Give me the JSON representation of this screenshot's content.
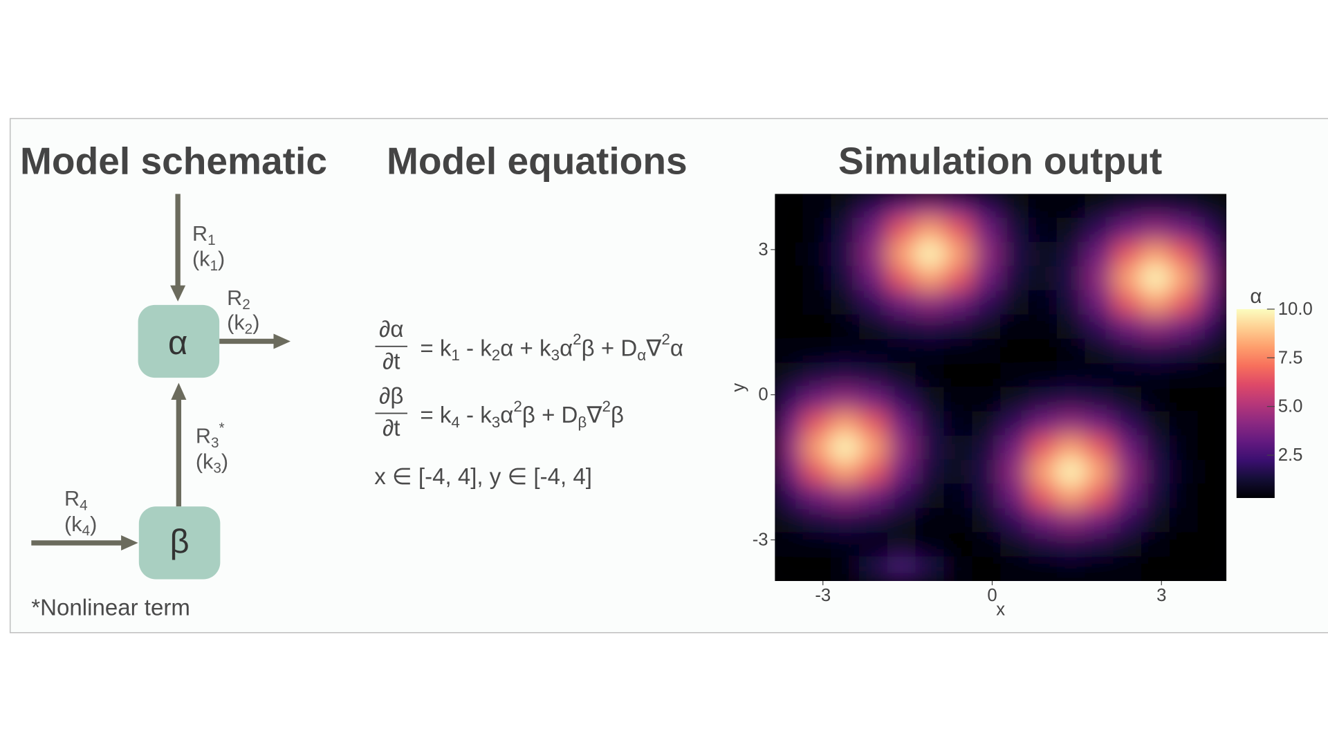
{
  "schematic": {
    "title": "Model schematic",
    "nodes": [
      {
        "label": "α"
      },
      {
        "label": "β"
      }
    ],
    "reactions": [
      {
        "label": [
          {
            "text": "R"
          },
          {
            "text": "1",
            "shift": "sub"
          }
        ],
        "rate": [
          {
            "text": "(k"
          },
          {
            "text": "1",
            "shift": "sub"
          },
          {
            "text": ")"
          }
        ]
      },
      {
        "label": [
          {
            "text": "R"
          },
          {
            "text": "2",
            "shift": "sub"
          }
        ],
        "rate": [
          {
            "text": "(k"
          },
          {
            "text": "2",
            "shift": "sub"
          },
          {
            "text": ")"
          }
        ]
      },
      {
        "label": [
          {
            "text": "R"
          },
          {
            "text": "3",
            "shift": "sub"
          },
          {
            "text": "*",
            "shift": "super"
          }
        ],
        "rate": [
          {
            "text": "(k"
          },
          {
            "text": "3",
            "shift": "sub"
          },
          {
            "text": ")"
          }
        ]
      },
      {
        "label": [
          {
            "text": "R"
          },
          {
            "text": "4",
            "shift": "sub"
          }
        ],
        "rate": [
          {
            "text": "(k"
          },
          {
            "text": "4",
            "shift": "sub"
          },
          {
            "text": ")"
          }
        ]
      }
    ],
    "footnote": "*Nonlinear term"
  },
  "equations": {
    "title": "Model equations",
    "rows": [
      {
        "numerator": "∂α",
        "denominator": "∂t",
        "rhs": [
          {
            "text": "= k"
          },
          {
            "text": "1",
            "shift": "sub"
          },
          {
            "text": " - k"
          },
          {
            "text": "2",
            "shift": "sub"
          },
          {
            "text": "α + k"
          },
          {
            "text": "3",
            "shift": "sub"
          },
          {
            "text": "α"
          },
          {
            "text": "2",
            "shift": "super"
          },
          {
            "text": "β + D"
          },
          {
            "text": "α",
            "shift": "sub"
          },
          {
            "text": "∇"
          },
          {
            "text": "2",
            "shift": "super"
          },
          {
            "text": "α"
          }
        ]
      },
      {
        "numerator": "∂β",
        "denominator": "∂t",
        "rhs": [
          {
            "text": "= k"
          },
          {
            "text": "4",
            "shift": "sub"
          },
          {
            "text": " - k"
          },
          {
            "text": "3",
            "shift": "sub"
          },
          {
            "text": "α"
          },
          {
            "text": "2",
            "shift": "super"
          },
          {
            "text": "β + D"
          },
          {
            "text": "β",
            "shift": "sub"
          },
          {
            "text": "∇"
          },
          {
            "text": "2",
            "shift": "super"
          },
          {
            "text": "β"
          }
        ]
      }
    ],
    "domain": "x ∈ [-4, 4], y ∈ [-4, 4]"
  },
  "chart_data": {
    "type": "heatmap",
    "title": "Simulation output",
    "x_label": "x",
    "y_label": "y",
    "x": [
      -3.6,
      -3.1,
      -2.6,
      -2.1,
      -1.6,
      -1.1,
      -0.6,
      -0.1,
      0.4,
      0.9,
      1.4,
      1.9,
      2.4,
      2.9,
      3.4,
      3.9
    ],
    "y": [
      3.9,
      3.4,
      2.9,
      2.4,
      1.9,
      1.4,
      0.9,
      0.4,
      -0.1,
      -0.6,
      -1.1,
      -1.6,
      -2.1,
      -2.6,
      -3.1,
      -3.6
    ],
    "z": [
      [
        0.3,
        0.4,
        0.8,
        1.9,
        3.5,
        4.3,
        3.5,
        1.9,
        0.8,
        0.4,
        0.5,
        0.8,
        1.4,
        1.6,
        1.4,
        0.8
      ],
      [
        0.3,
        0.5,
        1.4,
        3.5,
        6.5,
        8.1,
        6.5,
        3.5,
        1.4,
        0.6,
        0.8,
        1.9,
        3.5,
        4.3,
        3.5,
        1.9
      ],
      [
        0.3,
        0.6,
        1.6,
        4.3,
        8.1,
        10.0,
        8.1,
        4.3,
        1.6,
        0.8,
        1.4,
        3.5,
        6.5,
        8.1,
        6.5,
        3.5
      ],
      [
        0.3,
        0.5,
        1.4,
        3.5,
        6.5,
        8.1,
        6.5,
        3.5,
        1.4,
        0.8,
        1.6,
        4.3,
        8.1,
        10.0,
        8.1,
        4.3
      ],
      [
        0.3,
        0.4,
        0.8,
        1.9,
        3.5,
        4.3,
        3.5,
        1.9,
        0.8,
        0.6,
        1.4,
        3.5,
        6.5,
        8.1,
        6.5,
        3.5
      ],
      [
        0.3,
        0.3,
        0.5,
        0.8,
        1.4,
        1.6,
        1.4,
        0.8,
        0.5,
        0.4,
        0.8,
        1.9,
        3.5,
        4.3,
        3.5,
        1.9
      ],
      [
        0.4,
        0.5,
        0.6,
        0.6,
        0.6,
        0.6,
        0.5,
        0.4,
        0.3,
        0.3,
        0.5,
        0.8,
        1.4,
        1.6,
        1.4,
        0.8
      ],
      [
        0.8,
        1.4,
        1.6,
        1.4,
        0.8,
        0.5,
        0.3,
        0.3,
        0.4,
        0.5,
        0.6,
        0.6,
        0.6,
        0.6,
        0.5,
        0.4
      ],
      [
        1.9,
        3.5,
        4.3,
        3.5,
        1.9,
        0.8,
        0.4,
        0.5,
        0.8,
        1.4,
        1.6,
        1.4,
        0.8,
        0.5,
        0.3,
        0.3
      ],
      [
        3.5,
        6.5,
        8.1,
        6.5,
        3.5,
        1.4,
        0.6,
        0.8,
        1.9,
        3.5,
        4.3,
        3.5,
        1.9,
        0.8,
        0.4,
        0.3
      ],
      [
        4.3,
        8.1,
        10.0,
        8.1,
        4.3,
        1.6,
        0.8,
        1.4,
        3.5,
        6.5,
        8.1,
        6.5,
        3.5,
        1.4,
        0.5,
        0.3
      ],
      [
        3.5,
        6.5,
        8.1,
        6.5,
        3.5,
        1.4,
        0.8,
        1.6,
        4.3,
        8.1,
        10.0,
        8.1,
        4.3,
        1.6,
        0.6,
        0.3
      ],
      [
        1.9,
        3.5,
        4.3,
        3.5,
        1.9,
        0.8,
        0.6,
        1.4,
        3.5,
        6.5,
        8.1,
        6.5,
        3.5,
        1.4,
        0.5,
        0.3
      ],
      [
        0.8,
        1.4,
        1.6,
        1.4,
        0.8,
        0.5,
        0.4,
        0.8,
        1.9,
        3.5,
        4.3,
        3.5,
        1.9,
        0.8,
        0.4,
        0.3
      ],
      [
        0.4,
        0.5,
        0.6,
        0.6,
        0.8,
        0.4,
        0.3,
        0.5,
        0.8,
        1.4,
        1.6,
        1.4,
        0.8,
        0.5,
        0.3,
        0.3
      ],
      [
        0.3,
        0.3,
        0.5,
        1.5,
        2.5,
        1.5,
        0.5,
        0.3,
        0.4,
        0.5,
        0.6,
        0.5,
        0.4,
        0.3,
        0.3,
        0.3
      ]
    ],
    "xlim": [
      -3.85,
      4.15
    ],
    "ylim": [
      -3.85,
      4.15
    ],
    "xticks": [
      -3,
      0,
      3
    ],
    "yticks": [
      -3,
      0,
      3
    ],
    "colorscale": "magma",
    "zlim": [
      0.3,
      10
    ],
    "colorbar_title": "α",
    "colorbar_ticks": [
      2.5,
      {
        "value": 5,
        "label": "5.0"
      },
      7.5,
      {
        "value": 10,
        "label": "10.0"
      }
    ]
  }
}
